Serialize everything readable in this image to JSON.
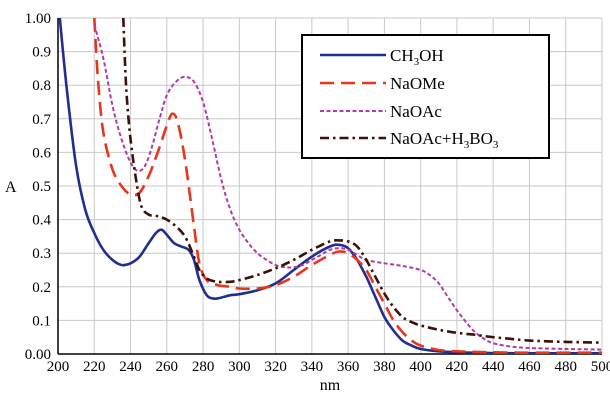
{
  "chart_data": {
    "type": "line",
    "xlabel": "nm",
    "ylabel": "A",
    "xlim": [
      200,
      500
    ],
    "ylim": [
      0,
      1
    ],
    "x_ticks": [
      "200",
      "220",
      "240",
      "260",
      "280",
      "300",
      "320",
      "340",
      "360",
      "380",
      "400",
      "420",
      "440",
      "460",
      "480",
      "500"
    ],
    "y_ticks": [
      "0.00",
      "0.1",
      "0.2",
      "0.3",
      "0.4",
      "0.5",
      "0.6",
      "0.7",
      "0.8",
      "0.9",
      "1.00"
    ],
    "grid": true,
    "legend_position": "top-right",
    "legend": [
      {
        "parts": [
          [
            "CH",
            "n"
          ],
          [
            "3",
            "sub"
          ],
          [
            "OH",
            "n"
          ]
        ]
      },
      {
        "parts": [
          [
            "NaOMe",
            "n"
          ]
        ]
      },
      {
        "parts": [
          [
            "NaOAc",
            "n"
          ]
        ]
      },
      {
        "parts": [
          [
            "NaOAc+H",
            "n"
          ],
          [
            "3",
            "sub"
          ],
          [
            "BO",
            "n"
          ],
          [
            "3",
            "sub"
          ]
        ]
      }
    ],
    "series": [
      {
        "color": "#1f2f8f",
        "dash": "solid",
        "points": [
          [
            201,
            1.0
          ],
          [
            205,
            0.78
          ],
          [
            210,
            0.56
          ],
          [
            215,
            0.43
          ],
          [
            220,
            0.36
          ],
          [
            225,
            0.31
          ],
          [
            230,
            0.28
          ],
          [
            235,
            0.265
          ],
          [
            240,
            0.27
          ],
          [
            245,
            0.29
          ],
          [
            250,
            0.33
          ],
          [
            254,
            0.36
          ],
          [
            257,
            0.37
          ],
          [
            260,
            0.355
          ],
          [
            264,
            0.33
          ],
          [
            268,
            0.32
          ],
          [
            272,
            0.31
          ],
          [
            275,
            0.28
          ],
          [
            278,
            0.22
          ],
          [
            282,
            0.175
          ],
          [
            286,
            0.165
          ],
          [
            290,
            0.168
          ],
          [
            295,
            0.175
          ],
          [
            300,
            0.178
          ],
          [
            310,
            0.19
          ],
          [
            320,
            0.21
          ],
          [
            330,
            0.25
          ],
          [
            340,
            0.29
          ],
          [
            350,
            0.32
          ],
          [
            355,
            0.325
          ],
          [
            360,
            0.315
          ],
          [
            365,
            0.28
          ],
          [
            370,
            0.23
          ],
          [
            375,
            0.17
          ],
          [
            380,
            0.11
          ],
          [
            385,
            0.07
          ],
          [
            390,
            0.04
          ],
          [
            395,
            0.025
          ],
          [
            400,
            0.015
          ],
          [
            410,
            0.008
          ],
          [
            420,
            0.005
          ],
          [
            440,
            0.003
          ],
          [
            460,
            0.002
          ],
          [
            480,
            0.002
          ],
          [
            500,
            0.002
          ]
        ]
      },
      {
        "color": "#e8361c",
        "dash": "long-dash",
        "points": [
          [
            220,
            1.0
          ],
          [
            222,
            0.82
          ],
          [
            225,
            0.66
          ],
          [
            230,
            0.55
          ],
          [
            235,
            0.5
          ],
          [
            240,
            0.475
          ],
          [
            245,
            0.48
          ],
          [
            250,
            0.53
          ],
          [
            255,
            0.6
          ],
          [
            260,
            0.68
          ],
          [
            263,
            0.715
          ],
          [
            266,
            0.69
          ],
          [
            270,
            0.58
          ],
          [
            275,
            0.38
          ],
          [
            278,
            0.27
          ],
          [
            282,
            0.22
          ],
          [
            288,
            0.205
          ],
          [
            295,
            0.2
          ],
          [
            300,
            0.195
          ],
          [
            310,
            0.195
          ],
          [
            320,
            0.205
          ],
          [
            330,
            0.23
          ],
          [
            340,
            0.265
          ],
          [
            350,
            0.295
          ],
          [
            355,
            0.305
          ],
          [
            360,
            0.3
          ],
          [
            365,
            0.28
          ],
          [
            370,
            0.25
          ],
          [
            375,
            0.2
          ],
          [
            380,
            0.15
          ],
          [
            385,
            0.1
          ],
          [
            390,
            0.065
          ],
          [
            395,
            0.04
          ],
          [
            400,
            0.025
          ],
          [
            410,
            0.012
          ],
          [
            420,
            0.008
          ],
          [
            440,
            0.005
          ],
          [
            460,
            0.004
          ],
          [
            480,
            0.004
          ],
          [
            500,
            0.004
          ]
        ]
      },
      {
        "color": "#b03aa8",
        "dash": "short-dash",
        "points": [
          [
            220,
            0.98
          ],
          [
            225,
            0.88
          ],
          [
            230,
            0.74
          ],
          [
            235,
            0.64
          ],
          [
            240,
            0.57
          ],
          [
            244,
            0.545
          ],
          [
            248,
            0.56
          ],
          [
            252,
            0.62
          ],
          [
            256,
            0.7
          ],
          [
            260,
            0.77
          ],
          [
            265,
            0.81
          ],
          [
            270,
            0.825
          ],
          [
            275,
            0.81
          ],
          [
            280,
            0.75
          ],
          [
            285,
            0.64
          ],
          [
            290,
            0.52
          ],
          [
            295,
            0.43
          ],
          [
            300,
            0.37
          ],
          [
            305,
            0.33
          ],
          [
            310,
            0.3
          ],
          [
            315,
            0.28
          ],
          [
            320,
            0.265
          ],
          [
            325,
            0.258
          ],
          [
            330,
            0.258
          ],
          [
            335,
            0.265
          ],
          [
            340,
            0.28
          ],
          [
            345,
            0.295
          ],
          [
            350,
            0.31
          ],
          [
            355,
            0.315
          ],
          [
            360,
            0.31
          ],
          [
            365,
            0.295
          ],
          [
            370,
            0.28
          ],
          [
            380,
            0.27
          ],
          [
            390,
            0.262
          ],
          [
            400,
            0.25
          ],
          [
            405,
            0.235
          ],
          [
            410,
            0.21
          ],
          [
            415,
            0.17
          ],
          [
            420,
            0.13
          ],
          [
            425,
            0.095
          ],
          [
            430,
            0.065
          ],
          [
            435,
            0.045
          ],
          [
            440,
            0.032
          ],
          [
            450,
            0.022
          ],
          [
            460,
            0.018
          ],
          [
            480,
            0.015
          ],
          [
            500,
            0.013
          ]
        ]
      },
      {
        "color": "#3a1208",
        "dash": "dash-dot",
        "points": [
          [
            236,
            1.0
          ],
          [
            237,
            0.86
          ],
          [
            238,
            0.76
          ],
          [
            240,
            0.64
          ],
          [
            243,
            0.52
          ],
          [
            246,
            0.44
          ],
          [
            250,
            0.415
          ],
          [
            255,
            0.41
          ],
          [
            260,
            0.4
          ],
          [
            265,
            0.38
          ],
          [
            270,
            0.35
          ],
          [
            275,
            0.29
          ],
          [
            278,
            0.25
          ],
          [
            282,
            0.225
          ],
          [
            288,
            0.215
          ],
          [
            295,
            0.215
          ],
          [
            300,
            0.22
          ],
          [
            310,
            0.235
          ],
          [
            320,
            0.255
          ],
          [
            330,
            0.28
          ],
          [
            340,
            0.31
          ],
          [
            350,
            0.335
          ],
          [
            355,
            0.338
          ],
          [
            360,
            0.335
          ],
          [
            365,
            0.32
          ],
          [
            370,
            0.28
          ],
          [
            375,
            0.23
          ],
          [
            380,
            0.18
          ],
          [
            385,
            0.14
          ],
          [
            390,
            0.11
          ],
          [
            395,
            0.095
          ],
          [
            400,
            0.085
          ],
          [
            410,
            0.072
          ],
          [
            420,
            0.063
          ],
          [
            430,
            0.057
          ],
          [
            440,
            0.05
          ],
          [
            450,
            0.045
          ],
          [
            460,
            0.04
          ],
          [
            480,
            0.036
          ],
          [
            500,
            0.034
          ]
        ]
      }
    ]
  }
}
